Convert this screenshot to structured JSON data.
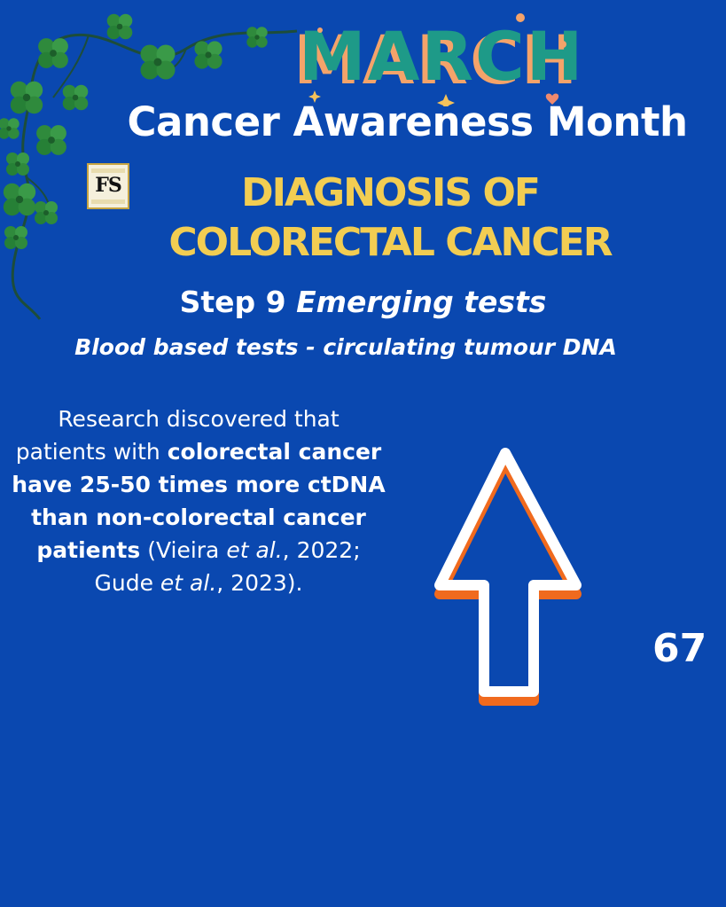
{
  "header": {
    "month_badge": "MARCH",
    "title": "Cancer Awareness Month",
    "logo_initials": "FS"
  },
  "heading": {
    "line1": "DIAGNOSIS OF",
    "line2": "COLORECTAL CANCER"
  },
  "step": {
    "prefix": "Step 9",
    "emphasis": "Emerging tests"
  },
  "subtitle": "Blood based tests - circulating tumour DNA",
  "body": {
    "intro": "Research discovered that patients with ",
    "bold": "colorectal cancer have 25-50 times more ctDNA than non-colorectal cancer patients",
    "cite_open": "(Vieira ",
    "cite_etal1": "et al.",
    "cite_mid": ", 2022; Gude ",
    "cite_etal2": "et al.",
    "cite_close": ", 2023)."
  },
  "arrow_icon": "up-arrow-icon",
  "page_number": "67",
  "colors": {
    "background": "#0a48b0",
    "accent_yellow": "#f2cd52",
    "arrow_orange": "#f06a1e",
    "leaf_green": "#2f8a3c",
    "march_teal": "#1e9a88"
  }
}
